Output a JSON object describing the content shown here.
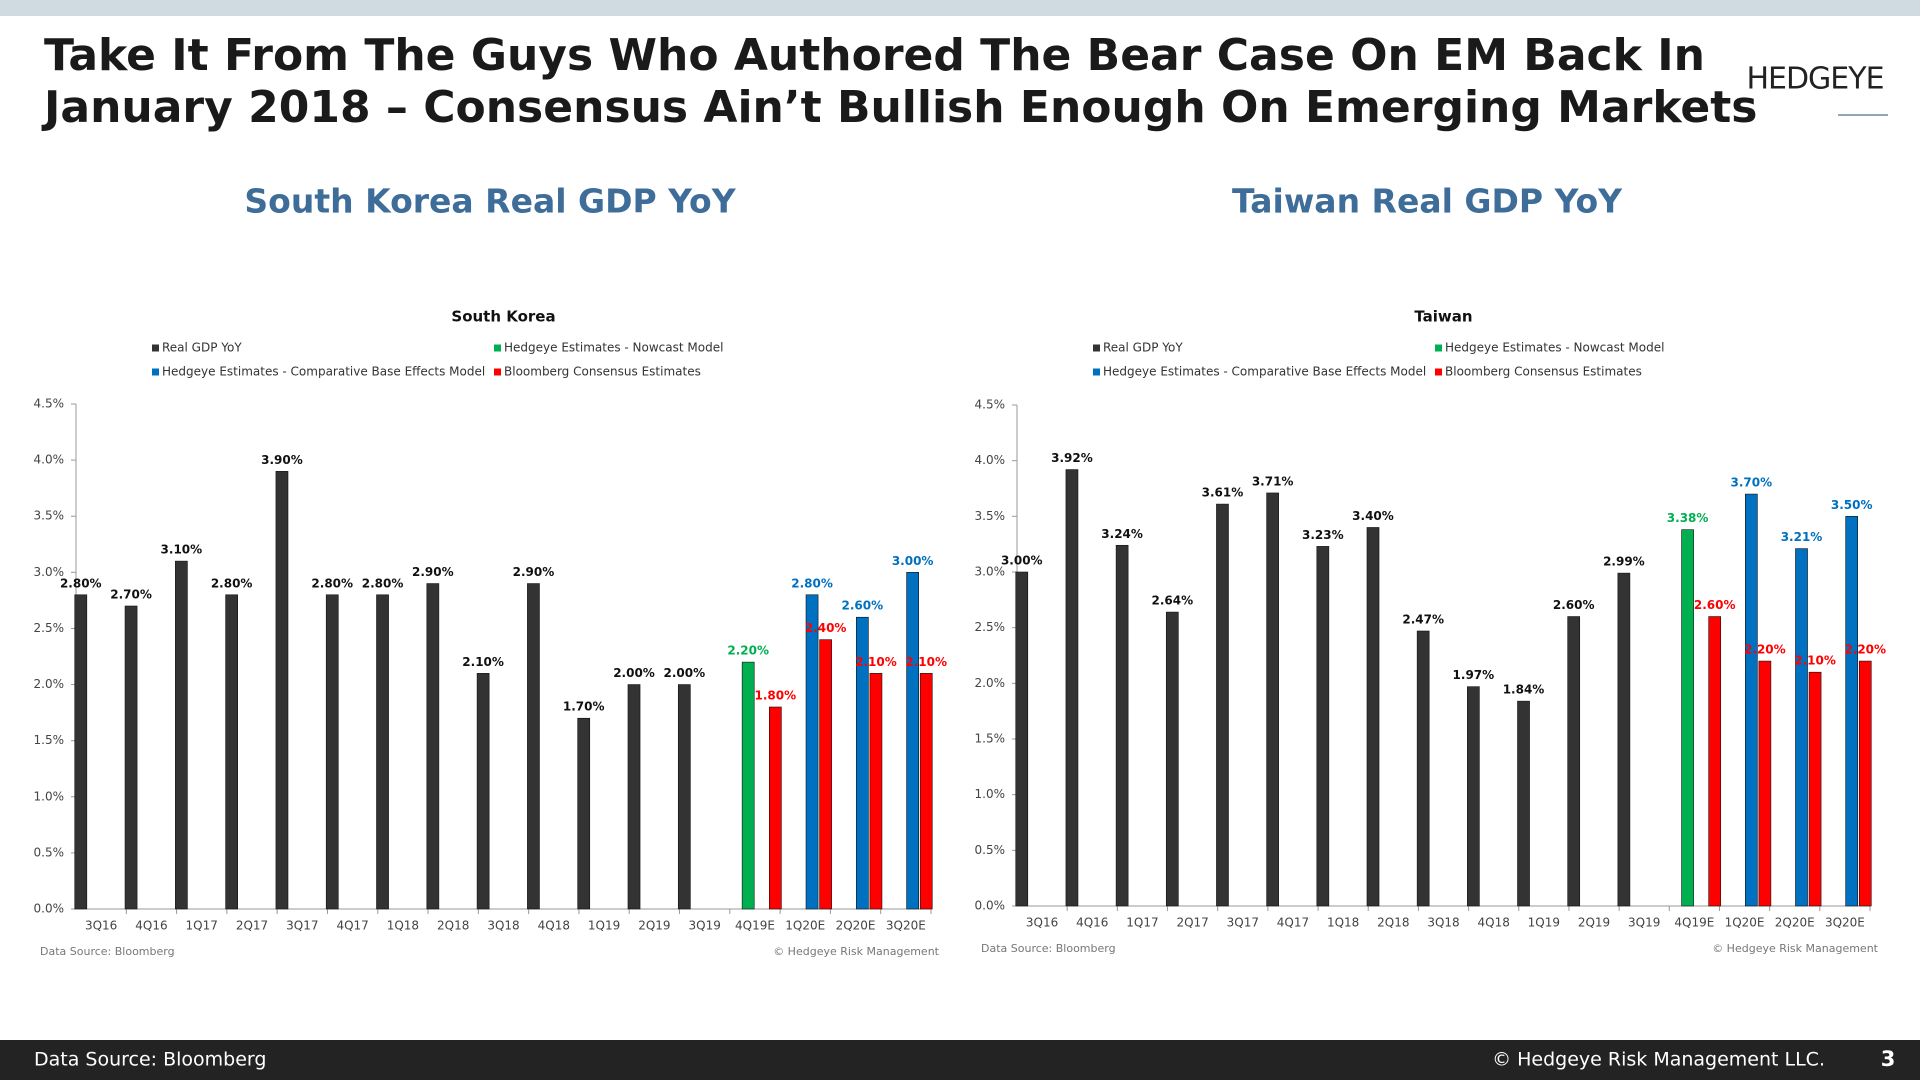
{
  "header": {
    "title_lines": [
      "Take It From The Guys Who Authored The Bear Case On EM Back In",
      "January 2018 – Consensus Ain’t Bullish Enough On Emerging Markets"
    ],
    "logo": "HEDGEYE"
  },
  "footer": {
    "source": "Data Source: Bloomberg",
    "copyright": "© Hedgeye Risk Management LLC.",
    "page": "3"
  },
  "chart_data": [
    {
      "type": "bar",
      "heading": "South Korea Real GDP YoY",
      "title": "South Korea",
      "categories": [
        "3Q16",
        "4Q16",
        "1Q17",
        "2Q17",
        "3Q17",
        "4Q17",
        "1Q18",
        "2Q18",
        "3Q18",
        "4Q18",
        "1Q19",
        "2Q19",
        "3Q19",
        "4Q19E",
        "1Q20E",
        "2Q20E",
        "3Q20E"
      ],
      "series": [
        {
          "name": "Real GDP YoY",
          "color": "#333333",
          "values": [
            2.8,
            2.7,
            3.1,
            2.8,
            3.9,
            2.8,
            2.8,
            2.9,
            2.1,
            2.9,
            1.7,
            2.0,
            2.0,
            null,
            null,
            null,
            null
          ],
          "value_labels": [
            "2.80%",
            "2.70%",
            "3.10%",
            "2.80%",
            "3.90%",
            "2.80%",
            "2.80%",
            "2.90%",
            "2.10%",
            "2.90%",
            "1.70%",
            "2.00%",
            "2.00%",
            null,
            null,
            null,
            null
          ]
        },
        {
          "name": "Hedgeye Estimates - Nowcast Model",
          "color": "#00b050",
          "values": [
            null,
            null,
            null,
            null,
            null,
            null,
            null,
            null,
            null,
            null,
            null,
            null,
            null,
            2.2,
            null,
            null,
            null
          ],
          "value_labels": [
            null,
            null,
            null,
            null,
            null,
            null,
            null,
            null,
            null,
            null,
            null,
            null,
            null,
            "2.20%",
            null,
            null,
            null
          ]
        },
        {
          "name": "Hedgeye Estimates - Comparative Base Effects Model",
          "color": "#0070c0",
          "values": [
            null,
            null,
            null,
            null,
            null,
            null,
            null,
            null,
            null,
            null,
            null,
            null,
            null,
            null,
            2.8,
            2.6,
            3.0
          ],
          "value_labels": [
            null,
            null,
            null,
            null,
            null,
            null,
            null,
            null,
            null,
            null,
            null,
            null,
            null,
            null,
            "2.80%",
            "2.60%",
            "3.00%"
          ]
        },
        {
          "name": "Bloomberg Consensus Estimates",
          "color": "#ff0000",
          "values": [
            null,
            null,
            null,
            null,
            null,
            null,
            null,
            null,
            null,
            null,
            null,
            null,
            null,
            1.8,
            2.4,
            2.1,
            2.1
          ],
          "value_labels": [
            null,
            null,
            null,
            null,
            null,
            null,
            null,
            null,
            null,
            null,
            null,
            null,
            null,
            "1.80%",
            "2.40%",
            "2.10%",
            "2.10%"
          ]
        }
      ],
      "ylim": [
        0,
        4.5
      ],
      "yticks": [
        {
          "value": 0,
          "label": "0.0%"
        },
        {
          "value": 0.5,
          "label": "0.5%"
        },
        {
          "value": 1,
          "label": "1.0%"
        },
        {
          "value": 1.5,
          "label": "1.5%"
        },
        {
          "value": 2,
          "label": "2.0%"
        },
        {
          "value": 2.5,
          "label": "2.5%"
        },
        {
          "value": 3,
          "label": "3.0%"
        },
        {
          "value": 3.5,
          "label": "3.5%"
        },
        {
          "value": 4,
          "label": "4.0%"
        },
        {
          "value": 4.5,
          "label": "4.5%"
        }
      ],
      "source": "Data Source: Bloomberg",
      "credit": "© Hedgeye Risk Management"
    },
    {
      "type": "bar",
      "heading": "Taiwan Real GDP YoY",
      "title": "Taiwan",
      "categories": [
        "3Q16",
        "4Q16",
        "1Q17",
        "2Q17",
        "3Q17",
        "4Q17",
        "1Q18",
        "2Q18",
        "3Q18",
        "4Q18",
        "1Q19",
        "2Q19",
        "3Q19",
        "4Q19E",
        "1Q20E",
        "2Q20E",
        "3Q20E"
      ],
      "series": [
        {
          "name": "Real GDP YoY",
          "color": "#333333",
          "values": [
            3.0,
            3.92,
            3.24,
            2.64,
            3.61,
            3.71,
            3.23,
            3.4,
            2.47,
            1.97,
            1.84,
            2.6,
            2.99,
            null,
            null,
            null,
            null
          ],
          "value_labels": [
            "3.00%",
            "3.92%",
            "3.24%",
            "2.64%",
            "3.61%",
            "3.71%",
            "3.23%",
            "3.40%",
            "2.47%",
            "1.97%",
            "1.84%",
            "2.60%",
            "2.99%",
            null,
            null,
            null,
            null
          ]
        },
        {
          "name": "Hedgeye Estimates - Nowcast Model",
          "color": "#00b050",
          "values": [
            null,
            null,
            null,
            null,
            null,
            null,
            null,
            null,
            null,
            null,
            null,
            null,
            null,
            3.38,
            null,
            null,
            null
          ],
          "value_labels": [
            null,
            null,
            null,
            null,
            null,
            null,
            null,
            null,
            null,
            null,
            null,
            null,
            null,
            "3.38%",
            null,
            null,
            null
          ]
        },
        {
          "name": "Hedgeye Estimates - Comparative Base Effects Model",
          "color": "#0070c0",
          "values": [
            null,
            null,
            null,
            null,
            null,
            null,
            null,
            null,
            null,
            null,
            null,
            null,
            null,
            null,
            3.7,
            3.21,
            3.5
          ],
          "value_labels": [
            null,
            null,
            null,
            null,
            null,
            null,
            null,
            null,
            null,
            null,
            null,
            null,
            null,
            null,
            "3.70%",
            "3.21%",
            "3.50%"
          ]
        },
        {
          "name": "Bloomberg Consensus Estimates",
          "color": "#ff0000",
          "values": [
            null,
            null,
            null,
            null,
            null,
            null,
            null,
            null,
            null,
            null,
            null,
            null,
            null,
            2.6,
            2.2,
            2.1,
            2.2
          ],
          "value_labels": [
            null,
            null,
            null,
            null,
            null,
            null,
            null,
            null,
            null,
            null,
            null,
            null,
            null,
            "2.60%",
            "2.20%",
            "2.10%",
            "2.20%"
          ]
        }
      ],
      "ylim": [
        0,
        4.5
      ],
      "yticks": [
        {
          "value": 0,
          "label": "0.0%"
        },
        {
          "value": 0.5,
          "label": "0.5%"
        },
        {
          "value": 1,
          "label": "1.0%"
        },
        {
          "value": 1.5,
          "label": "1.5%"
        },
        {
          "value": 2,
          "label": "2.0%"
        },
        {
          "value": 2.5,
          "label": "2.5%"
        },
        {
          "value": 3,
          "label": "3.0%"
        },
        {
          "value": 3.5,
          "label": "3.5%"
        },
        {
          "value": 4,
          "label": "4.0%"
        },
        {
          "value": 4.5,
          "label": "4.5%"
        }
      ],
      "source": "Data Source: Bloomberg",
      "credit": "© Hedgeye Risk Management"
    }
  ]
}
